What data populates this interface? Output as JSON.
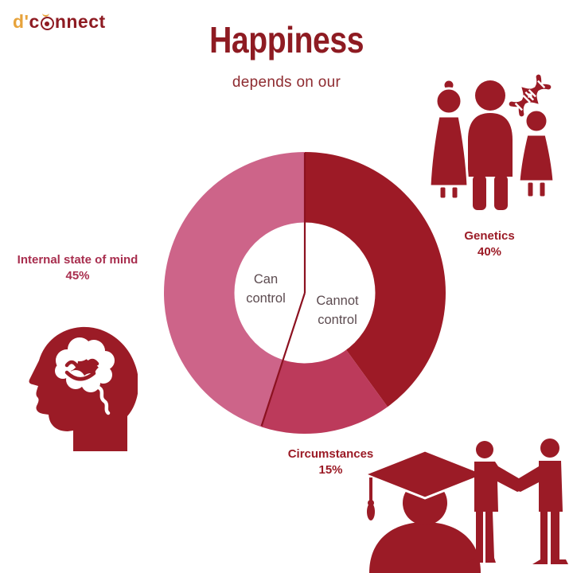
{
  "page": {
    "background": "#ffffff"
  },
  "logo": {
    "prefix": "d'",
    "word_start": "c",
    "word_end": "nnect",
    "prefix_color": "#e7a33c",
    "word_color": "#8e1b22"
  },
  "header": {
    "title": "Happiness",
    "subtitle": "depends on our"
  },
  "chart_data": {
    "type": "pie",
    "style": "donut",
    "title": "Happiness depends on our",
    "hole_ratio": 0.5,
    "start_angle_deg": 0,
    "direction": "clockwise",
    "segments": [
      {
        "label": "Genetics",
        "value": 40,
        "pct_label": "40%",
        "color": "#9d1a26",
        "label_color": "#9b1b26",
        "control_group": "Cannot control"
      },
      {
        "label": "Circumstances",
        "value": 15,
        "pct_label": "15%",
        "color": "#bc3a5b",
        "label_color": "#9b1b26",
        "control_group": "Cannot control"
      },
      {
        "label": "Internal state of mind",
        "value": 45,
        "pct_label": "45%",
        "color": "#cd6489",
        "label_color": "#a82e4e",
        "control_group": "Can control"
      }
    ],
    "center_labels": {
      "left": "Can control",
      "right": "Cannot control"
    },
    "divider": {
      "angles_deg": [
        0,
        198
      ],
      "color": "#8c1120"
    },
    "legend": "none",
    "grid": false
  },
  "icons": {
    "logo": "dconnect-logo",
    "genetics": "family-with-dna-icon",
    "genetics_extra": "dna-helix-icon",
    "internal": "happy-brain-head-icon",
    "circumstances_graduate": "graduate-icon",
    "circumstances_handshake": "handshake-people-icon"
  },
  "colors": {
    "dark_red": "#9b1b26",
    "rose": "#bc3a5b",
    "pink": "#cd6489",
    "title_red": "#8e1b22",
    "center_text": "#5c4b50",
    "logo_gold": "#e7a33c"
  }
}
